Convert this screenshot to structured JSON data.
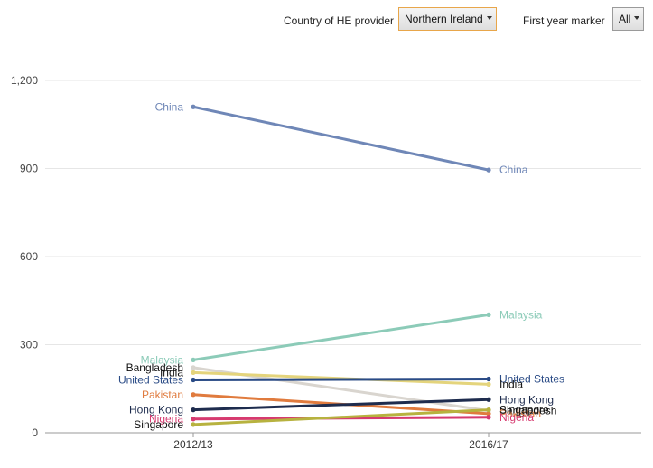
{
  "controls": {
    "country_label": "Country of HE provider",
    "country_value": "Northern Ireland",
    "marker_label": "First year marker",
    "marker_value": "All"
  },
  "chart_data": {
    "type": "line",
    "title": "",
    "xlabel": "",
    "ylabel": "",
    "categories": [
      "2012/13",
      "2016/17"
    ],
    "ylim": [
      0,
      1200
    ],
    "yticks": [
      "0",
      "300",
      "600",
      "900",
      "1,200"
    ],
    "ytick_values": [
      0,
      300,
      600,
      900,
      1200
    ],
    "grid": true,
    "series": [
      {
        "name": "China",
        "color": "#6f87b7",
        "values": [
          1110,
          895
        ]
      },
      {
        "name": "Malaysia",
        "color": "#8ccbb8",
        "values": [
          248,
          402
        ]
      },
      {
        "name": "Bangladesh",
        "color": "#d9d5cf",
        "values": [
          222,
          75
        ]
      },
      {
        "name": "India",
        "color": "#e4d47c",
        "values": [
          205,
          165
        ]
      },
      {
        "name": "United States",
        "color": "#2a4b86",
        "values": [
          180,
          183
        ]
      },
      {
        "name": "Pakistan",
        "color": "#e07b3e",
        "values": [
          130,
          65
        ]
      },
      {
        "name": "Hong Kong",
        "color": "#1e2c4e",
        "values": [
          78,
          113
        ]
      },
      {
        "name": "Nigeria",
        "color": "#d63a6f",
        "values": [
          47,
          53
        ]
      },
      {
        "name": "Singapore",
        "color": "#b7b23f",
        "values": [
          28,
          78
        ]
      }
    ],
    "left_labels": [
      {
        "text": "China",
        "color": "#6f87b7"
      },
      {
        "text": "Malaysia",
        "color": "#8ccbb8"
      },
      {
        "text": "Bangladesh",
        "color": "#111111"
      },
      {
        "text": "India",
        "color": "#111111"
      },
      {
        "text": "United States",
        "color": "#2a4b86"
      },
      {
        "text": "Pakistan",
        "color": "#e07b3e"
      },
      {
        "text": "Hong Kong",
        "color": "#1e2c4e"
      },
      {
        "text": "Nigeria",
        "color": "#d63a6f"
      },
      {
        "text": "Singapore",
        "color": "#111111"
      }
    ],
    "right_labels": [
      {
        "text": "China",
        "color": "#6f87b7"
      },
      {
        "text": "Malaysia",
        "color": "#8ccbb8"
      },
      {
        "text": "United States",
        "color": "#2a4b86"
      },
      {
        "text": "India",
        "color": "#111111"
      },
      {
        "text": "Hong Kong",
        "color": "#1e2c4e"
      },
      {
        "text": "Bangladesh",
        "color": "#111111"
      },
      {
        "text": "Pakistan",
        "color": "#e07b3e"
      },
      {
        "text": "Singapore",
        "color": "#111111"
      },
      {
        "text": "Nigeria",
        "color": "#d63a6f"
      }
    ]
  }
}
